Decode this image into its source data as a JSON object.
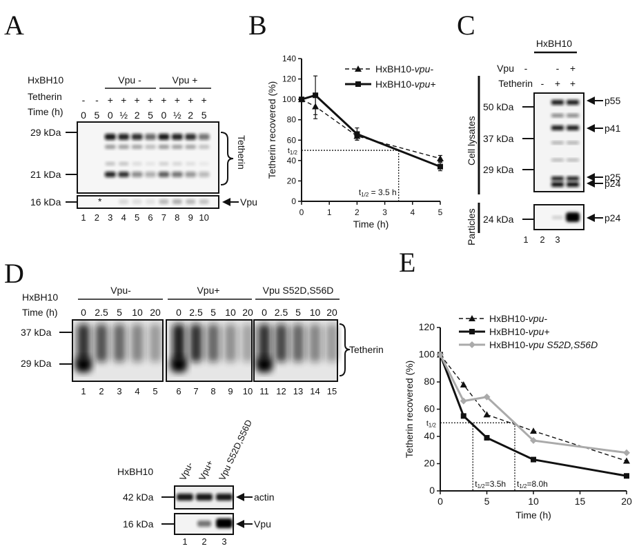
{
  "panels": {
    "A": {
      "label": "A",
      "row_headers": {
        "construct": "HxBH10",
        "tetherin": "Tetherin",
        "time": "Time (h)"
      },
      "groups": [
        "Vpu -",
        "Vpu +"
      ],
      "tetherin_signs": [
        "-",
        "-",
        "+",
        "+",
        "+",
        "+",
        "+",
        "+",
        "+",
        "+"
      ],
      "times": [
        "0",
        "5",
        "0",
        "½",
        "2",
        "5",
        "0",
        "½",
        "2",
        "5"
      ],
      "mw_markers": [
        "29 kDa",
        "21 kDa",
        "16 kDa"
      ],
      "right_labels": {
        "tetherin": "Tetherin",
        "vpu": "Vpu"
      },
      "asterisk": "*",
      "lanes": [
        "1",
        "2",
        "3",
        "4",
        "5",
        "6",
        "7",
        "8",
        "9",
        "10"
      ]
    },
    "B": {
      "label": "B",
      "half_life_text": "t1/2 = 3.5 h",
      "t_half_label": "t1/2"
    },
    "C": {
      "label": "C",
      "construct": "HxBH10",
      "row_headers": {
        "vpu": "Vpu",
        "tetherin": "Tetherin"
      },
      "vpu_signs": [
        "-",
        "-",
        "+"
      ],
      "tetherin_signs": [
        "-",
        "+",
        "+"
      ],
      "mw_markers": [
        "50 kDa",
        "37 kDa",
        "29 kDa",
        "24 kDa"
      ],
      "bands": [
        "p55",
        "p41",
        "p25",
        "p24",
        "p24"
      ],
      "side_labels": {
        "lysates": "Cell lysates",
        "particles": "Particles"
      },
      "lanes": [
        "1",
        "2",
        "3"
      ]
    },
    "D": {
      "label": "D",
      "row_headers": {
        "construct": "HxBH10",
        "time": "Time (h)"
      },
      "groups": [
        "Vpu-",
        "Vpu+",
        "Vpu S52D,S56D"
      ],
      "times": [
        "0",
        "2.5",
        "5",
        "10",
        "20",
        "0",
        "2.5",
        "5",
        "10",
        "20",
        "0",
        "2.5",
        "5",
        "10",
        "20"
      ],
      "mw_markers": [
        "37 kDa",
        "29 kDa"
      ],
      "right_label": "Tetherin",
      "lanes": [
        "1",
        "2",
        "3",
        "4",
        "5",
        "6",
        "7",
        "8",
        "9",
        "10",
        "11",
        "12",
        "13",
        "14",
        "15"
      ],
      "inset": {
        "construct": "HxBH10",
        "columns": [
          "Vpu-",
          "Vpu+",
          "Vpu S52D,S56D"
        ],
        "mw_markers": [
          "42 kDa",
          "16 kDa"
        ],
        "bands": [
          "actin",
          "Vpu"
        ],
        "lanes": [
          "1",
          "2",
          "3"
        ]
      }
    },
    "E": {
      "label": "E",
      "t_half_label": "t1/2",
      "half_life_texts": [
        "t1/2=3.5h",
        "t1/2=8.0h"
      ]
    }
  },
  "chart_data": [
    {
      "panel": "B",
      "type": "line",
      "xlabel": "Time (h)",
      "ylabel": "Tetherin recovered (%)",
      "xlim": [
        0,
        5
      ],
      "ylim": [
        0,
        140
      ],
      "xticks": [
        0,
        1,
        2,
        3,
        4,
        5
      ],
      "yticks": [
        0,
        20,
        40,
        60,
        80,
        100,
        120,
        140
      ],
      "legend_position": "top-right",
      "series": [
        {
          "name": "HxBH10-vpu-",
          "style": "dashed",
          "marker": "triangle",
          "color": "#111111",
          "x": [
            0,
            0.5,
            2,
            5
          ],
          "y": [
            100,
            93,
            64,
            42
          ],
          "err": [
            0,
            12,
            4,
            3
          ]
        },
        {
          "name": "HxBH10-vpu+",
          "style": "solid",
          "marker": "square",
          "color": "#111111",
          "x": [
            0,
            0.5,
            2,
            5
          ],
          "y": [
            100,
            104,
            66,
            34
          ],
          "err": [
            0,
            19,
            6,
            4
          ]
        }
      ],
      "annotation": {
        "t_half_y": 50,
        "t_half_x": 3.5
      }
    },
    {
      "panel": "E",
      "type": "line",
      "xlabel": "Time (h)",
      "ylabel": "Tetherin recovered (%)",
      "xlim": [
        0,
        20
      ],
      "ylim": [
        0,
        120
      ],
      "xticks": [
        0,
        5,
        10,
        15,
        20
      ],
      "yticks": [
        0,
        20,
        40,
        60,
        80,
        100,
        120
      ],
      "legend_position": "top-right",
      "series": [
        {
          "name": "HxBH10-vpu-",
          "style": "dashed",
          "marker": "triangle",
          "color": "#111111",
          "x": [
            0,
            2.5,
            5,
            10,
            20
          ],
          "y": [
            100,
            78,
            56,
            44,
            22
          ]
        },
        {
          "name": "HxBH10-vpu+",
          "style": "solid",
          "marker": "square",
          "color": "#111111",
          "x": [
            0,
            2.5,
            5,
            10,
            20
          ],
          "y": [
            100,
            55,
            39,
            23,
            11
          ]
        },
        {
          "name": "HxBH10-vpu S52D,S56D",
          "style": "solid",
          "marker": "diamond",
          "color": "#aaaaaa",
          "x": [
            0,
            2.5,
            5,
            10,
            20
          ],
          "y": [
            100,
            66,
            69,
            37,
            28
          ]
        }
      ],
      "annotation": {
        "t_half_y": 50,
        "t_half_x": [
          3.5,
          8.0
        ]
      }
    }
  ]
}
